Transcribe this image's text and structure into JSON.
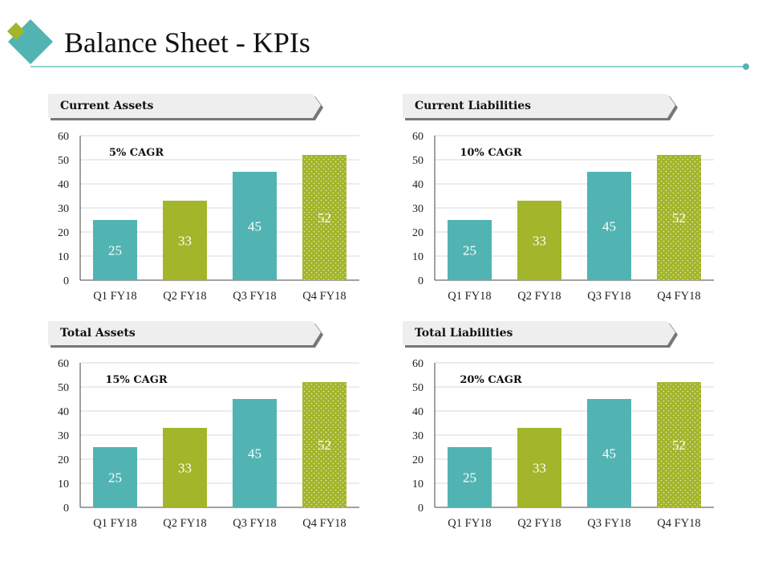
{
  "page": {
    "title": "Balance Sheet - KPIs"
  },
  "colors": {
    "teal": "#52b3b3",
    "olive": "#a2b52b",
    "rule": "#52b3b3",
    "label_bg": "#eeeeee",
    "label_shadow": "#777777",
    "grid": "#d9d9d9"
  },
  "chart_data": [
    {
      "type": "bar",
      "title": "Current Assets",
      "annotation": "5% CAGR",
      "categories": [
        "Q1 FY18",
        "Q2 FY18",
        "Q3 FY18",
        "Q4 FY18"
      ],
      "values": [
        25,
        33,
        45,
        52
      ],
      "bar_colors": [
        "teal",
        "olive",
        "teal",
        "olive-dotted"
      ],
      "ylim": [
        0,
        60
      ],
      "yticks": [
        0,
        10,
        20,
        30,
        40,
        50,
        60
      ],
      "grid": true,
      "legend": "none"
    },
    {
      "type": "bar",
      "title": "Current Liabilities",
      "annotation": "10% CAGR",
      "categories": [
        "Q1 FY18",
        "Q2 FY18",
        "Q3 FY18",
        "Q4 FY18"
      ],
      "values": [
        25,
        33,
        45,
        52
      ],
      "bar_colors": [
        "teal",
        "olive",
        "teal",
        "olive-dotted"
      ],
      "ylim": [
        0,
        60
      ],
      "yticks": [
        0,
        10,
        20,
        30,
        40,
        50,
        60
      ],
      "grid": true,
      "legend": "none"
    },
    {
      "type": "bar",
      "title": "Total Assets",
      "annotation": "15% CAGR",
      "categories": [
        "Q1 FY18",
        "Q2 FY18",
        "Q3 FY18",
        "Q4 FY18"
      ],
      "values": [
        25,
        33,
        45,
        52
      ],
      "bar_colors": [
        "teal",
        "olive",
        "teal",
        "olive-dotted"
      ],
      "ylim": [
        0,
        60
      ],
      "yticks": [
        0,
        10,
        20,
        30,
        40,
        50,
        60
      ],
      "grid": true,
      "legend": "none"
    },
    {
      "type": "bar",
      "title": "Total Liabilities",
      "annotation": "20% CAGR",
      "categories": [
        "Q1 FY18",
        "Q2 FY18",
        "Q3 FY18",
        "Q4 FY18"
      ],
      "values": [
        25,
        33,
        45,
        52
      ],
      "bar_colors": [
        "teal",
        "olive",
        "teal",
        "olive-dotted"
      ],
      "ylim": [
        0,
        60
      ],
      "yticks": [
        0,
        10,
        20,
        30,
        40,
        50,
        60
      ],
      "grid": true,
      "legend": "none"
    }
  ]
}
